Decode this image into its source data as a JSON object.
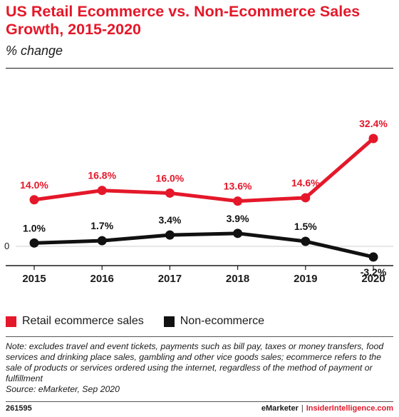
{
  "title": "US Retail Ecommerce vs. Non-Ecommerce Sales Growth, 2015-2020",
  "subtitle": "% change",
  "colors": {
    "accent": "#e4182a",
    "ecommerce": "#e4182a",
    "non_ecommerce": "#111111"
  },
  "chart_data": {
    "type": "line",
    "title": "US Retail Ecommerce vs. Non-Ecommerce Sales Growth, 2015-2020",
    "subtitle": "% change",
    "x": [
      "2015",
      "2016",
      "2017",
      "2018",
      "2019",
      "2020"
    ],
    "zero_label": "0",
    "ylim": [
      -5,
      35
    ],
    "grid": false,
    "legend_placement": "bottom-left",
    "series": [
      {
        "name": "Retail ecommerce sales",
        "color": "#e4182a",
        "values": [
          14.0,
          16.8,
          16.0,
          13.6,
          14.6,
          32.4
        ],
        "labels": [
          "14.0%",
          "16.8%",
          "16.0%",
          "13.6%",
          "14.6%",
          "32.4%"
        ]
      },
      {
        "name": "Non-ecommerce",
        "color": "#111111",
        "values": [
          1.0,
          1.7,
          3.4,
          3.9,
          1.5,
          -3.2
        ],
        "labels": [
          "1.0%",
          "1.7%",
          "3.4%",
          "3.9%",
          "1.5%",
          "-3.2%"
        ]
      }
    ]
  },
  "legend": {
    "items": [
      {
        "label": "Retail ecommerce sales",
        "color": "#e4182a"
      },
      {
        "label": "Non-ecommerce",
        "color": "#111111"
      }
    ]
  },
  "note": "Note: excludes travel and event tickets, payments such as bill pay, taxes or money transfers, food services and drinking place sales, gambling and other vice goods sales; ecommerce refers to the sale of products or services ordered using the internet, regardless of the method of payment or fulfillment",
  "source": "Source: eMarketer, Sep 2020",
  "footer": {
    "chart_id": "261595",
    "brand": "eMarketer",
    "separator": "|",
    "brand2": "InsiderIntelligence.com"
  }
}
